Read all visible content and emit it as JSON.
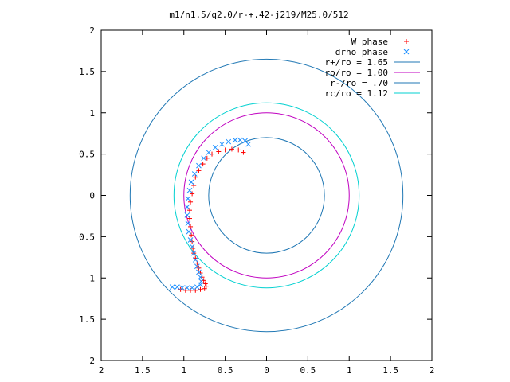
{
  "chart_data": {
    "type": "scatter",
    "title": "m1/n1.5/q2.0/r-+.42-j219/M25.0/512",
    "xlim": [
      -2,
      2
    ],
    "ylim": [
      -2,
      2
    ],
    "x_ticks": [
      -2,
      -1.5,
      -1,
      -0.5,
      0,
      0.5,
      1,
      1.5,
      2
    ],
    "y_ticks": [
      -2,
      -1.5,
      -1,
      -0.5,
      0,
      0.5,
      1,
      1.5,
      2
    ],
    "x_tick_labels": [
      "2",
      "1.5",
      "1",
      "0.5",
      "0",
      "0.5",
      "1",
      "1.5",
      "2"
    ],
    "y_tick_labels": [
      "2",
      "1.5",
      "1",
      "0.5",
      "0",
      "0.5",
      "1",
      "1.5",
      "2"
    ],
    "grid": false,
    "legend_position": "top-right",
    "series": [
      {
        "name": "W phase",
        "marker": "plus",
        "color": "#ff0000",
        "x": [
          -0.28,
          -0.34,
          -0.42,
          -0.5,
          -0.58,
          -0.66,
          -0.72,
          -0.77,
          -0.82,
          -0.86,
          -0.88,
          -0.9,
          -0.92,
          -0.93,
          -0.93,
          -0.92,
          -0.91,
          -0.9,
          -0.89,
          -0.88,
          -0.86,
          -0.84,
          -0.82,
          -0.8,
          -0.78,
          -0.76,
          -0.74,
          -0.73,
          -0.75,
          -0.8,
          -0.86,
          -0.92,
          -0.98,
          -1.04
        ],
        "y": [
          0.52,
          0.55,
          0.56,
          0.55,
          0.53,
          0.5,
          0.45,
          0.38,
          0.3,
          0.22,
          0.12,
          0.02,
          -0.08,
          -0.18,
          -0.28,
          -0.38,
          -0.48,
          -0.56,
          -0.64,
          -0.7,
          -0.76,
          -0.82,
          -0.88,
          -0.94,
          -0.99,
          -1.03,
          -1.07,
          -1.1,
          -1.13,
          -1.14,
          -1.15,
          -1.15,
          -1.15,
          -1.14
        ]
      },
      {
        "name": "drho phase",
        "marker": "cross",
        "color": "#1e90ff",
        "x": [
          -0.22,
          -0.26,
          -0.32,
          -0.38,
          -0.46,
          -0.54,
          -0.62,
          -0.7,
          -0.76,
          -0.82,
          -0.87,
          -0.91,
          -0.93,
          -0.95,
          -0.96,
          -0.96,
          -0.95,
          -0.94,
          -0.92,
          -0.9,
          -0.88,
          -0.86,
          -0.84,
          -0.82,
          -0.8,
          -0.79,
          -0.8,
          -0.84,
          -0.9,
          -0.96,
          -1.02,
          -1.08,
          -1.14
        ],
        "y": [
          0.62,
          0.66,
          0.67,
          0.67,
          0.65,
          0.62,
          0.58,
          0.52,
          0.45,
          0.36,
          0.26,
          0.16,
          0.06,
          -0.04,
          -0.14,
          -0.24,
          -0.34,
          -0.44,
          -0.54,
          -0.62,
          -0.7,
          -0.78,
          -0.86,
          -0.93,
          -0.99,
          -1.04,
          -1.08,
          -1.11,
          -1.12,
          -1.12,
          -1.12,
          -1.11,
          -1.11
        ]
      },
      {
        "name": "r+/ro = 1.65",
        "type": "circle",
        "radius": 1.65,
        "color": "#1f77b4"
      },
      {
        "name": "ro/ro = 1.00",
        "type": "circle",
        "radius": 1.0,
        "color": "#c000c0"
      },
      {
        "name": "r-/ro = .70",
        "type": "circle",
        "radius": 0.7,
        "color": "#1f77b4"
      },
      {
        "name": "rc/ro = 1.12",
        "type": "circle",
        "radius": 1.12,
        "color": "#00d0d0"
      }
    ]
  }
}
